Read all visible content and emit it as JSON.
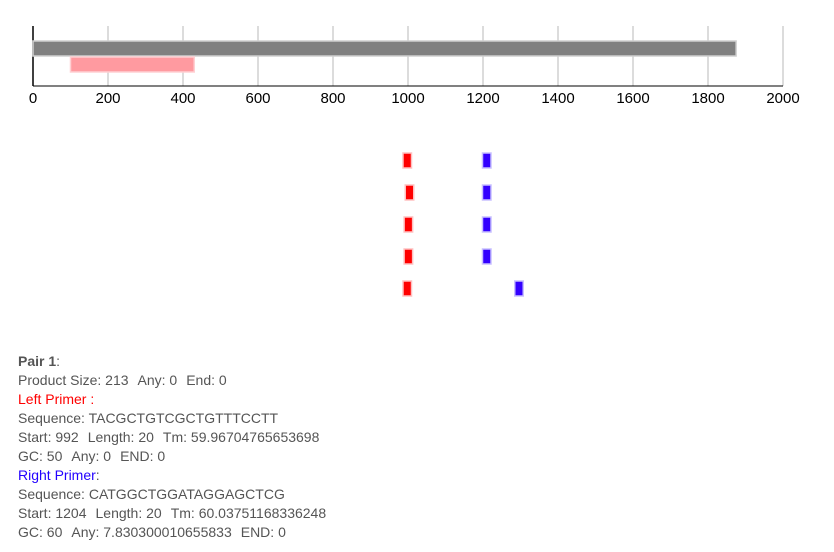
{
  "colors": {
    "sequence_bar": "#808080",
    "region_bar": "#ff9aa0",
    "left_primer": "#ff0000",
    "right_primer": "#3300ff"
  },
  "map": {
    "axis_ticks": [
      "0",
      "200",
      "400",
      "600",
      "800",
      "1000",
      "1200",
      "1400",
      "1600",
      "1800",
      "2000"
    ],
    "sequence_length": 1875,
    "target_region": {
      "start": 100,
      "end": 430
    },
    "primer_pairs": [
      {
        "left_start": 992,
        "right_start": 1204,
        "length": 20
      },
      {
        "left_start": 998,
        "right_start": 1204,
        "length": 20
      },
      {
        "left_start": 995,
        "right_start": 1204,
        "length": 20
      },
      {
        "left_start": 995,
        "right_start": 1204,
        "length": 20
      },
      {
        "left_start": 992,
        "right_start": 1290,
        "length": 20
      }
    ]
  },
  "details": {
    "pair_title": "Pair 1",
    "pair_colon": ":",
    "product": {
      "size_label": "Product Size:",
      "size": "213",
      "any_label": "Any:",
      "any": "0",
      "end_label": "End:",
      "end": "0"
    },
    "left": {
      "title": "Left Primer :",
      "sequence_label": "Sequence:",
      "sequence": "TACGCTGTCGCTGTTTCCTT",
      "start_label": "Start:",
      "start": "992",
      "length_label": "Length:",
      "length": "20",
      "tm_label": "Tm:",
      "tm": "59.96704765653698",
      "gc_label": "GC:",
      "gc": "50",
      "any_label": "Any:",
      "any": "0",
      "end_label": "END:",
      "end": "0"
    },
    "right": {
      "title": "Right Primer",
      "title_colon": ":",
      "sequence_label": "Sequence:",
      "sequence": "CATGGCTGGATAGGAGCTCG",
      "start_label": "Start:",
      "start": "1204",
      "length_label": "Length:",
      "length": "20",
      "tm_label": "Tm:",
      "tm": "60.03751168336248",
      "gc_label": "GC:",
      "gc": "60",
      "any_label": "Any:",
      "any": "7.830300010655833",
      "end_label": "END:",
      "end": "0"
    }
  }
}
